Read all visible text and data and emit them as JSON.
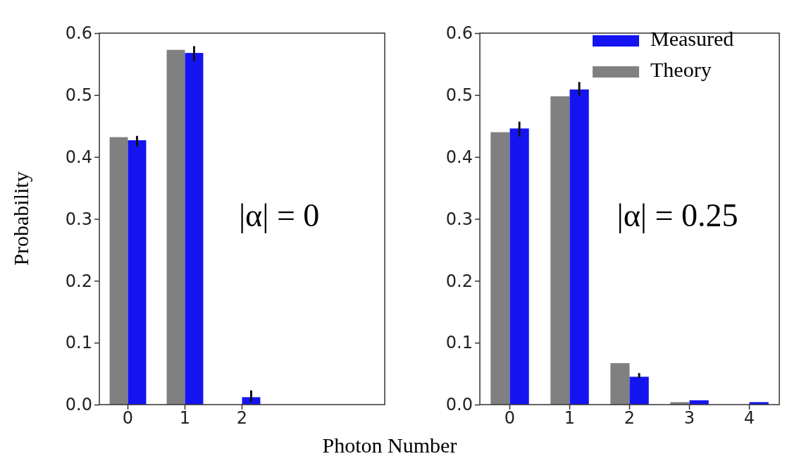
{
  "chart_data": [
    {
      "type": "bar",
      "xlabel": "Photon Number",
      "ylabel": "Probability",
      "categories": [
        "0",
        "1",
        "2",
        null,
        null
      ],
      "ylim": [
        0,
        0.6
      ],
      "yticks": [
        {
          "value": 0,
          "label": "0.0"
        },
        {
          "value": 0.1,
          "label": "0.1"
        },
        {
          "value": 0.2,
          "label": "0.2"
        },
        {
          "value": 0.3,
          "label": "0.3"
        },
        {
          "value": 0.4,
          "label": "0.4"
        },
        {
          "value": 0.5,
          "label": "0.5"
        },
        {
          "value": 0.6,
          "label": "0.6"
        }
      ],
      "legend": false,
      "annotations": [
        "|α| = 0"
      ],
      "series": [
        {
          "color": "#808080",
          "values": [
            0.432,
            0.573,
            0,
            null,
            null
          ]
        },
        {
          "color": "#1414f0",
          "values": [
            0.427,
            0.568,
            0.012,
            null,
            null
          ],
          "errors": [
            [
              0.417,
              0.434
            ],
            [
              0.555,
              0.579
            ],
            [
              0.005,
              0.023
            ],
            null,
            null
          ]
        }
      ]
    },
    {
      "type": "bar",
      "categories": [
        "0",
        "1",
        "2",
        "3",
        "4"
      ],
      "ylim": [
        0,
        0.6
      ],
      "yticks": [
        {
          "value": 0,
          "label": "0.0"
        },
        {
          "value": 0.1,
          "label": "0.1"
        },
        {
          "value": 0.2,
          "label": "0.2"
        },
        {
          "value": 0.3,
          "label": "0.3"
        },
        {
          "value": 0.4,
          "label": "0.4"
        },
        {
          "value": 0.5,
          "label": "0.5"
        },
        {
          "value": 0.6,
          "label": "0.6"
        }
      ],
      "legend": "top right",
      "annotations": [
        "|α| = 0.25"
      ],
      "series": [
        {
          "name": "Theory",
          "color": "#808080",
          "values": [
            0.44,
            0.498,
            0.067,
            0.004,
            null
          ]
        },
        {
          "name": "Measured",
          "color": "#1414f0",
          "values": [
            0.446,
            0.509,
            0.045,
            0.007,
            0.004
          ],
          "errors": [
            [
              0.433,
              0.457
            ],
            [
              0.499,
              0.521
            ],
            [
              0.043,
              0.051
            ],
            null,
            null
          ]
        }
      ]
    }
  ]
}
